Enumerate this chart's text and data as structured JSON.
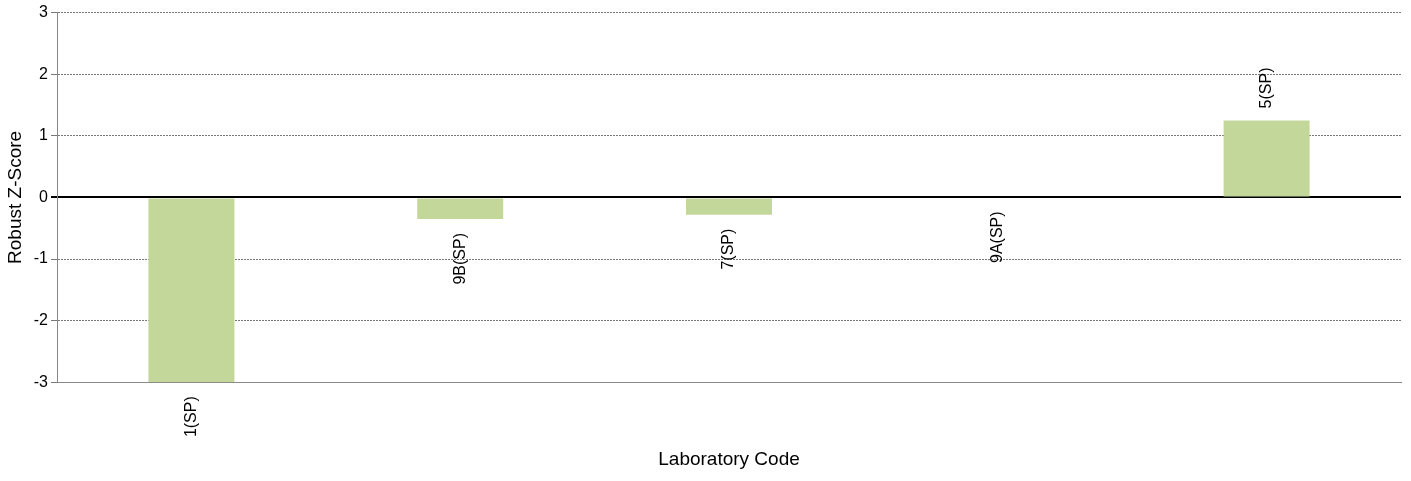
{
  "chart_data": {
    "type": "bar",
    "xlabel": "Laboratory Code",
    "ylabel": "Robust Z-Score",
    "categories": [
      "1(SP)",
      "9B(SP)",
      "7(SP)",
      "9A(SP)",
      "5(SP)"
    ],
    "values": [
      -3,
      -0.35,
      -0.28,
      0,
      1.25
    ],
    "color": "#c4d79b",
    "ylim": [
      -3,
      3
    ],
    "yticks": [
      -3,
      -2,
      -1,
      0,
      1,
      2,
      3
    ],
    "grid": "y",
    "tick_labels": "y",
    "legend": false
  }
}
